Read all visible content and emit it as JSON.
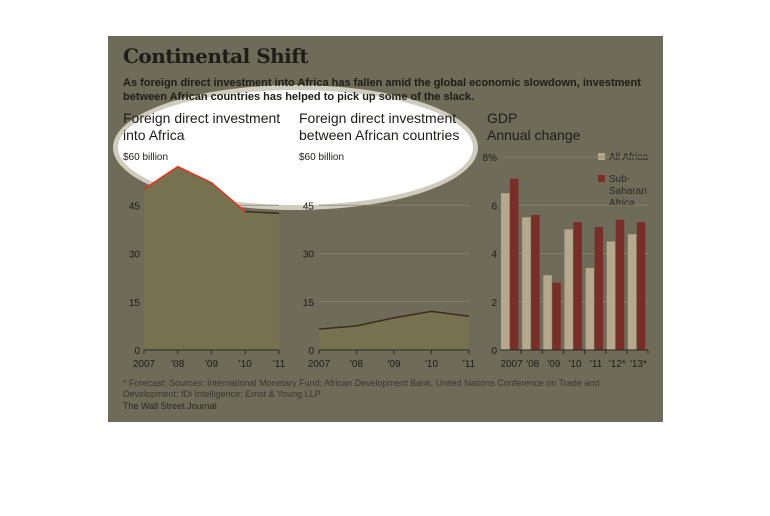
{
  "header": {
    "title": "Continental Shift",
    "subtitle": "As foreign direct investment into Africa has fallen amid the global economic slowdown, investment between African countries has helped to pick up some of the slack."
  },
  "panels": {
    "fdi_into": {
      "title_line1": "Foreign direct investment",
      "title_line2": "into Africa",
      "unit": "$60 billion"
    },
    "fdi_between": {
      "title_line1": "Foreign direct investment",
      "title_line2": "between African countries",
      "unit": "$60 billion"
    },
    "gdp": {
      "title_line1": "GDP",
      "title_line2": "Annual change"
    }
  },
  "legend": {
    "all_africa": "All Africa",
    "ssa_line1": "Sub-",
    "ssa_line2": "Saharan",
    "ssa_line3": "Africa"
  },
  "footer": {
    "footnote": "* Forecast; Sources: International Monetary Fund; African Development Bank; United Nations Conference on Trade and Development; fDi Intelligence; Ernst & Young LLP",
    "source": "The Wall Street Journal"
  },
  "colors": {
    "panel_bg": "#6f6b59",
    "area_fill": "#76714f",
    "red_line": "#e8301c",
    "dark_line": "#3e2b20",
    "bar_all_africa": "#b5a88c",
    "bar_ssa": "#7a2e2a"
  },
  "chart_data": [
    {
      "type": "area",
      "categories": [
        "2007",
        "'08",
        "'09",
        "'10",
        "'11"
      ],
      "series": [
        {
          "values": [
            50,
            57,
            52,
            43,
            42.5
          ]
        }
      ],
      "ylim": [
        0,
        60
      ],
      "yticks": [
        "0",
        "15",
        "30",
        "45"
      ]
    },
    {
      "type": "area",
      "categories": [
        "2007",
        "'08",
        "'09",
        "'10",
        "'11"
      ],
      "series": [
        {
          "values": [
            6.5,
            7.5,
            10,
            12,
            10.5
          ]
        }
      ],
      "ylim": [
        0,
        60
      ],
      "yticks": [
        "0",
        "15",
        "30",
        "45"
      ]
    },
    {
      "type": "bar",
      "categories": [
        "2007",
        "'08",
        "'09",
        "'10",
        "'11",
        "'12*",
        "'13*"
      ],
      "series": [
        {
          "name": "All Africa",
          "values": [
            6.5,
            5.5,
            3.1,
            5.0,
            3.4,
            4.5,
            4.8
          ]
        },
        {
          "name": "Sub-Saharan Africa",
          "values": [
            7.1,
            5.6,
            2.8,
            5.3,
            5.1,
            5.4,
            5.3
          ]
        }
      ],
      "ylim": [
        0,
        8
      ],
      "yticks": [
        "0",
        "2",
        "4",
        "6",
        "8%"
      ]
    }
  ]
}
